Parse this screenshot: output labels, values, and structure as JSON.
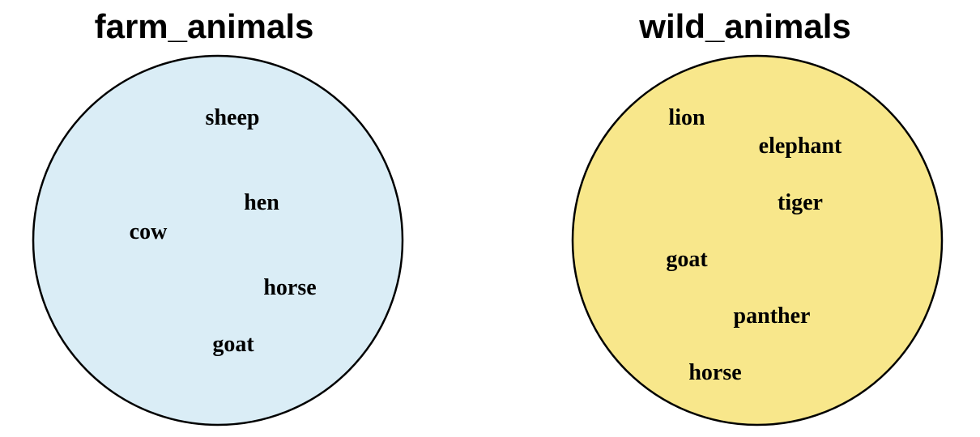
{
  "sets": [
    {
      "title": "farm_animals",
      "fill": "#daedf6",
      "members": [
        "sheep",
        "hen",
        "cow",
        "horse",
        "goat"
      ]
    },
    {
      "title": "wild_animals",
      "fill": "#f8e78b",
      "members": [
        "lion",
        "elephant",
        "tiger",
        "goat",
        "panther",
        "horse"
      ]
    }
  ]
}
